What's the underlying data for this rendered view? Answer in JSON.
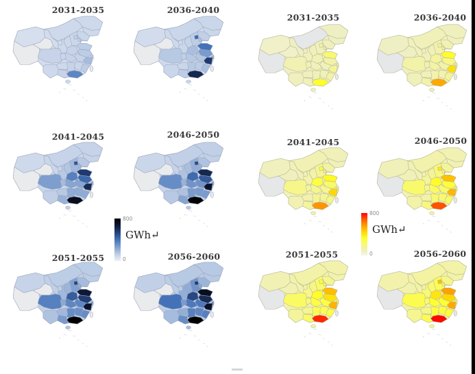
{
  "chart_data": {
    "type": "heatmap",
    "subtype": "choropleth-small-multiples",
    "region": "China provinces",
    "unit": "GWh",
    "value_range": [
      0,
      800
    ],
    "periods": [
      "2031-2035",
      "2036-2040",
      "2041-2045",
      "2046-2050",
      "2051-2055",
      "2056-2060"
    ],
    "panels": [
      {
        "id": "left-blue-panel",
        "colorbar": {
          "max_label": "800",
          "min_label": "0",
          "unit_label": "GWh↵"
        },
        "colormap_stops": [
          [
            0,
            "#edf0f5"
          ],
          [
            0.12,
            "#ccd8eb"
          ],
          [
            0.3,
            "#8aa8d4"
          ],
          [
            0.5,
            "#4472b8"
          ],
          [
            0.7,
            "#1f3a70"
          ],
          [
            0.85,
            "#0c1630"
          ],
          [
            1,
            "#000000"
          ]
        ],
        "border_color": "#9aa3b8",
        "no_data_color": "#e9ebed",
        "maps": [
          {
            "period": "2031-2035",
            "values": {
              "XJ": 70,
              "XZ": null,
              "QH": null,
              "GS": 80,
              "NMG": 90,
              "HLJ": 90,
              "JL": 90,
              "LN": 100,
              "BJ": 120,
              "TJ": 110,
              "HEB": 100,
              "SX": 90,
              "SAX": 90,
              "NX": 80,
              "SD": 130,
              "HEN": 110,
              "JS": 130,
              "AH": 110,
              "SH": 120,
              "HUB": 110,
              "ZJ": 180,
              "JX": 100,
              "HUN": 110,
              "FJ": 130,
              "GD": 340,
              "GX": 110,
              "GZ": 90,
              "YN": 90,
              "SC": 110,
              "CQ": 100,
              "HI": 90,
              "TW": null
            }
          },
          {
            "period": "2036-2040",
            "values": {
              "XJ": 80,
              "XZ": null,
              "QH": null,
              "GS": 90,
              "NMG": 100,
              "HLJ": 100,
              "JL": 100,
              "LN": 120,
              "BJ": 430,
              "TJ": 150,
              "HEB": 130,
              "SX": 110,
              "SAX": 100,
              "NX": 90,
              "SD": 400,
              "HEN": 170,
              "JS": 280,
              "AH": 150,
              "SH": 200,
              "HUB": 140,
              "ZJ": 560,
              "JX": 130,
              "HUN": 140,
              "FJ": 170,
              "GD": 620,
              "GX": 130,
              "GZ": 100,
              "YN": 100,
              "SC": 140,
              "CQ": 120,
              "HI": 100,
              "TW": null
            }
          },
          {
            "period": "2041-2045",
            "values": {
              "XJ": 90,
              "XZ": null,
              "QH": null,
              "GS": 100,
              "NMG": 110,
              "HLJ": 110,
              "JL": 110,
              "LN": 140,
              "BJ": 480,
              "TJ": 180,
              "HEB": 190,
              "SX": 150,
              "SAX": 140,
              "NX": 100,
              "SD": 560,
              "HEN": 360,
              "JS": 430,
              "AH": 250,
              "SH": 240,
              "HUB": 250,
              "ZJ": 610,
              "JX": 230,
              "HUN": 230,
              "FJ": 230,
              "GD": 730,
              "GX": 210,
              "GZ": 140,
              "YN": 120,
              "SC": 270,
              "CQ": 180,
              "HI": 120,
              "TW": null
            }
          },
          {
            "period": "2046-2050",
            "values": {
              "XJ": 100,
              "XZ": null,
              "QH": null,
              "GS": 110,
              "NMG": 120,
              "HLJ": 120,
              "JL": 120,
              "LN": 160,
              "BJ": 510,
              "TJ": 200,
              "HEB": 220,
              "SX": 170,
              "SAX": 160,
              "NX": 110,
              "SD": 620,
              "HEN": 420,
              "JS": 470,
              "AH": 300,
              "SH": 260,
              "HUB": 300,
              "ZJ": 690,
              "JX": 280,
              "HUN": 280,
              "FJ": 280,
              "GD": 790,
              "GX": 250,
              "GZ": 160,
              "YN": 140,
              "SC": 320,
              "CQ": 210,
              "HI": 140,
              "TW": null
            }
          },
          {
            "period": "2051-2055",
            "values": {
              "XJ": 110,
              "XZ": null,
              "QH": null,
              "GS": 120,
              "NMG": 130,
              "HLJ": 130,
              "JL": 130,
              "LN": 180,
              "BJ": 530,
              "TJ": 220,
              "HEB": 260,
              "SX": 200,
              "SAX": 190,
              "NX": 120,
              "SD": 670,
              "HEN": 460,
              "JS": 550,
              "AH": 340,
              "SH": 280,
              "HUB": 340,
              "ZJ": 690,
              "JX": 310,
              "HUN": 320,
              "FJ": 320,
              "GD": 800,
              "GX": 280,
              "GZ": 190,
              "YN": 160,
              "SC": 360,
              "CQ": 240,
              "HI": 160,
              "TW": null
            }
          },
          {
            "period": "2056-2060",
            "values": {
              "XJ": 120,
              "XZ": null,
              "QH": null,
              "GS": 130,
              "NMG": 140,
              "HLJ": 140,
              "JL": 140,
              "LN": 200,
              "BJ": 560,
              "TJ": 240,
              "HEB": 300,
              "SX": 230,
              "SAX": 220,
              "NX": 130,
              "SD": 720,
              "HEN": 520,
              "JS": 610,
              "AH": 380,
              "SH": 300,
              "HUB": 380,
              "ZJ": 700,
              "JX": 340,
              "HUN": 360,
              "FJ": 360,
              "GD": 800,
              "GX": 320,
              "GZ": 220,
              "YN": 180,
              "SC": 400,
              "CQ": 280,
              "HI": 180,
              "TW": null
            }
          }
        ]
      },
      {
        "id": "right-red-panel",
        "colorbar": {
          "max_label": "800",
          "min_label": "0",
          "unit_label": "GWh↵"
        },
        "colormap_stops": [
          [
            0,
            "#f6f6e8"
          ],
          [
            0.1,
            "#efefc4"
          ],
          [
            0.25,
            "#f7f780"
          ],
          [
            0.4,
            "#ffff2e"
          ],
          [
            0.55,
            "#ffd800"
          ],
          [
            0.7,
            "#ffa000"
          ],
          [
            0.85,
            "#ff5a00"
          ],
          [
            1,
            "#ff0000"
          ]
        ],
        "border_color": "#b3b396",
        "no_data_color": "#e6e7e9",
        "maps": [
          {
            "period": "2031-2035",
            "values": {
              "XJ": 70,
              "XZ": null,
              "QH": 70,
              "GS": 80,
              "NMG": null,
              "HLJ": 80,
              "JL": 80,
              "LN": 90,
              "BJ": 120,
              "TJ": 100,
              "HEB": 100,
              "SX": 90,
              "SAX": 90,
              "NX": 80,
              "SD": 220,
              "HEN": 110,
              "JS": 130,
              "AH": 100,
              "SH": 120,
              "HUB": 100,
              "ZJ": 160,
              "JX": 100,
              "HUN": 100,
              "FJ": 130,
              "GD": 320,
              "GX": 100,
              "GZ": 90,
              "YN": 90,
              "SC": 110,
              "CQ": 100,
              "HI": 90,
              "TW": null
            }
          },
          {
            "period": "2036-2040",
            "values": {
              "XJ": 80,
              "XZ": null,
              "QH": 80,
              "GS": 90,
              "NMG": 100,
              "HLJ": 90,
              "JL": 90,
              "LN": 110,
              "BJ": 160,
              "TJ": 120,
              "HEB": 120,
              "SX": 100,
              "SAX": 100,
              "NX": 90,
              "SD": 330,
              "HEN": 150,
              "JS": 180,
              "AH": 130,
              "SH": 160,
              "HUB": 130,
              "ZJ": 420,
              "JX": 120,
              "HUN": 120,
              "FJ": 160,
              "GD": 540,
              "GX": 120,
              "GZ": 100,
              "YN": 100,
              "SC": 130,
              "CQ": 110,
              "HI": 100,
              "TW": null
            }
          },
          {
            "period": "2041-2045",
            "values": {
              "XJ": 90,
              "XZ": null,
              "QH": 90,
              "GS": 100,
              "NMG": 110,
              "HLJ": 100,
              "JL": 100,
              "LN": 130,
              "BJ": 280,
              "TJ": 150,
              "HEB": 160,
              "SX": 130,
              "SAX": 120,
              "NX": 100,
              "SD": 340,
              "HEN": 290,
              "JS": 230,
              "AH": 170,
              "SH": 190,
              "HUB": 170,
              "ZJ": 440,
              "JX": 160,
              "HUN": 160,
              "FJ": 190,
              "GD": 580,
              "GX": 150,
              "GZ": 120,
              "YN": 110,
              "SC": 180,
              "CQ": 140,
              "HI": 110,
              "TW": null
            }
          },
          {
            "period": "2046-2050",
            "values": {
              "XJ": 100,
              "XZ": null,
              "QH": 100,
              "GS": 110,
              "NMG": 120,
              "HLJ": 110,
              "JL": 110,
              "LN": 150,
              "BJ": 390,
              "TJ": 180,
              "HEB": 200,
              "SX": 160,
              "SAX": 150,
              "NX": 110,
              "SD": 490,
              "HEN": 330,
              "JS": 300,
              "AH": 230,
              "SH": 220,
              "HUB": 240,
              "ZJ": 510,
              "JX": 220,
              "HUN": 220,
              "FJ": 240,
              "GD": 690,
              "GX": 200,
              "GZ": 140,
              "YN": 130,
              "SC": 230,
              "CQ": 170,
              "HI": 130,
              "TW": null
            }
          },
          {
            "period": "2051-2055",
            "values": {
              "XJ": 110,
              "XZ": null,
              "QH": 110,
              "GS": 120,
              "NMG": 130,
              "HLJ": 120,
              "JL": 120,
              "LN": 170,
              "BJ": 300,
              "TJ": 200,
              "HEB": 230,
              "SX": 190,
              "SAX": 180,
              "NX": 120,
              "SD": 500,
              "HEN": 330,
              "JS": 410,
              "AH": 280,
              "SH": 240,
              "HUB": 280,
              "ZJ": 520,
              "JX": 260,
              "HUN": 260,
              "FJ": 270,
              "GD": 750,
              "GX": 230,
              "GZ": 170,
              "YN": 150,
              "SC": 240,
              "CQ": 200,
              "HI": 150,
              "TW": null
            }
          },
          {
            "period": "2056-2060",
            "values": {
              "XJ": 120,
              "XZ": null,
              "QH": 120,
              "GS": 130,
              "NMG": 140,
              "HLJ": 130,
              "JL": 130,
              "LN": 190,
              "BJ": 500,
              "TJ": 220,
              "HEB": 260,
              "SX": 220,
              "SAX": 210,
              "NX": 130,
              "SD": 560,
              "HEN": 400,
              "JS": 440,
              "AH": 310,
              "SH": 260,
              "HUB": 310,
              "ZJ": 540,
              "JX": 290,
              "HUN": 290,
              "FJ": 300,
              "GD": 790,
              "GX": 260,
              "GZ": 190,
              "YN": 170,
              "SC": 270,
              "CQ": 230,
              "HI": 170,
              "TW": null
            }
          }
        ]
      }
    ]
  }
}
